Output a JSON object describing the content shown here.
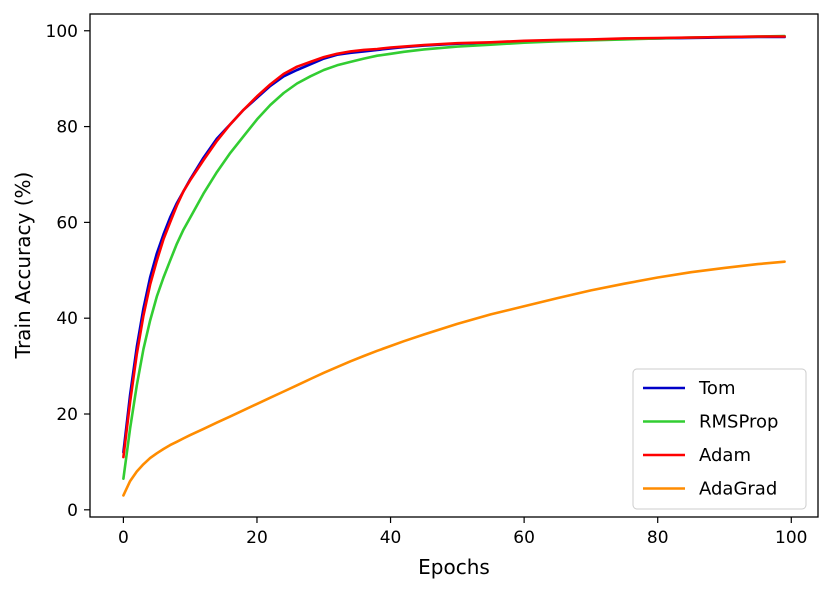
{
  "chart_data": {
    "type": "line",
    "xlabel": "Epochs",
    "ylabel": "Train Accuracy (%)",
    "xlim": [
      -5,
      104
    ],
    "ylim": [
      -1.5,
      103.5
    ],
    "xticks": [
      0,
      20,
      40,
      60,
      80,
      100
    ],
    "yticks": [
      0,
      20,
      40,
      60,
      80,
      100
    ],
    "grid": false,
    "legend_position": "bottom-right",
    "x": [
      0,
      1,
      2,
      3,
      4,
      5,
      6,
      7,
      8,
      9,
      10,
      12,
      14,
      16,
      18,
      20,
      22,
      24,
      26,
      28,
      30,
      32,
      34,
      36,
      38,
      40,
      42,
      45,
      50,
      55,
      60,
      65,
      70,
      75,
      80,
      85,
      90,
      95,
      99
    ],
    "series": [
      {
        "name": "Tom",
        "color": "#0000c8",
        "values": [
          12.0,
          24.0,
          34.0,
          42.0,
          48.5,
          53.5,
          57.5,
          61.0,
          64.0,
          66.5,
          69.0,
          73.5,
          77.5,
          80.5,
          83.5,
          86.0,
          88.5,
          90.5,
          91.8,
          93.0,
          94.2,
          95.0,
          95.4,
          95.7,
          96.0,
          96.3,
          96.6,
          96.9,
          97.3,
          97.5,
          97.8,
          98.0,
          98.1,
          98.3,
          98.4,
          98.5,
          98.6,
          98.7,
          98.7
        ]
      },
      {
        "name": "RMSProp",
        "color": "#32cd32",
        "values": [
          6.5,
          17.0,
          26.0,
          33.5,
          39.5,
          44.5,
          48.5,
          52.0,
          55.5,
          58.5,
          61.0,
          66.0,
          70.5,
          74.5,
          78.0,
          81.5,
          84.5,
          87.0,
          89.0,
          90.5,
          91.8,
          92.8,
          93.5,
          94.2,
          94.8,
          95.2,
          95.6,
          96.1,
          96.7,
          97.1,
          97.5,
          97.8,
          98.0,
          98.2,
          98.4,
          98.6,
          98.7,
          98.8,
          98.9
        ]
      },
      {
        "name": "Adam",
        "color": "#ff0000",
        "values": [
          11.0,
          22.5,
          32.5,
          40.5,
          47.0,
          52.0,
          56.5,
          60.0,
          63.5,
          66.5,
          68.8,
          73.0,
          77.0,
          80.5,
          83.5,
          86.3,
          88.8,
          91.0,
          92.5,
          93.5,
          94.5,
          95.2,
          95.7,
          96.0,
          96.2,
          96.5,
          96.7,
          97.0,
          97.4,
          97.6,
          97.9,
          98.1,
          98.2,
          98.4,
          98.5,
          98.6,
          98.7,
          98.8,
          98.8
        ]
      },
      {
        "name": "AdaGrad",
        "color": "#ff8c00",
        "values": [
          3.0,
          6.0,
          8.0,
          9.5,
          10.8,
          11.8,
          12.7,
          13.5,
          14.2,
          14.9,
          15.6,
          16.9,
          18.2,
          19.5,
          20.8,
          22.1,
          23.4,
          24.7,
          26.0,
          27.3,
          28.6,
          29.8,
          31.0,
          32.1,
          33.2,
          34.2,
          35.2,
          36.6,
          38.8,
          40.8,
          42.5,
          44.2,
          45.8,
          47.2,
          48.5,
          49.6,
          50.5,
          51.3,
          51.8
        ]
      }
    ]
  }
}
